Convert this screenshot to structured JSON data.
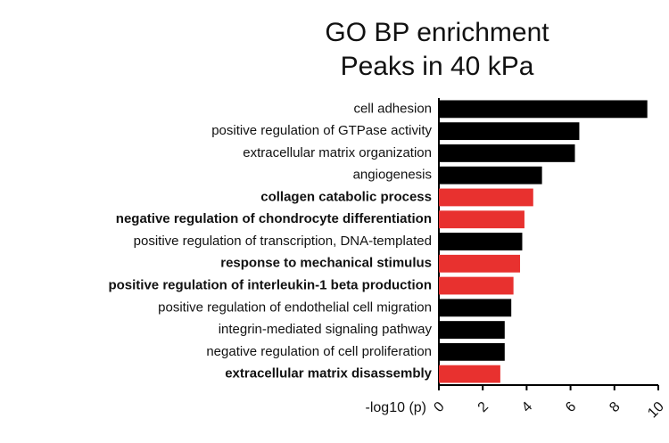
{
  "chart_data": {
    "type": "barh",
    "title": "GO BP enrichment",
    "subtitle": "Peaks in 40 kPa",
    "categories": [
      "cell adhesion",
      "positive regulation of GTPase activity",
      "extracellular matrix organization",
      "angiogenesis",
      "collagen catabolic process",
      "negative regulation of chondrocyte differentiation",
      "positive regulation of transcription, DNA-templated",
      "response to mechanical stimulus",
      "positive regulation of interleukin-1 beta production",
      "positive regulation of endothelial cell migration",
      "integrin-mediated signaling pathway",
      "negative regulation of cell proliferation",
      "extracellular matrix disassembly"
    ],
    "values": [
      9.5,
      6.4,
      6.2,
      4.7,
      4.3,
      3.9,
      3.8,
      3.7,
      3.4,
      3.3,
      3.0,
      3.0,
      2.8
    ],
    "colors": [
      "#000000",
      "#000000",
      "#000000",
      "#000000",
      "#e8312f",
      "#e8312f",
      "#000000",
      "#e8312f",
      "#e8312f",
      "#000000",
      "#000000",
      "#000000",
      "#e8312f"
    ],
    "highlight_color": "#e8312f",
    "xlabel": "-log10 (p)",
    "xlim": [
      0,
      10
    ],
    "xticks": [
      0,
      2,
      4,
      6,
      8,
      10
    ]
  }
}
